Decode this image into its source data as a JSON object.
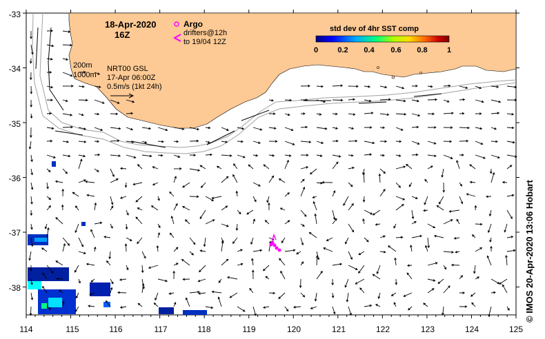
{
  "map": {
    "date": "18-Apr-2020",
    "time": "16Z",
    "argo_label": "Argo",
    "drifters_label_1": "drifters@12h",
    "drifters_label_2": "to 19/04 12Z",
    "depth_200": "200m",
    "depth_1000": "1000m",
    "product": "NRT00 GSL",
    "product_time": "17-Apr 06:00Z",
    "scale_label": "0.5m/s (1kt 24h)",
    "colorbar_title": "std dev of 4hr SST comp",
    "colorbar_ticks": [
      "0",
      "0.2",
      "0.4",
      "0.6",
      "0.8",
      "1"
    ],
    "credit": "© IMOS 20-Apr-2020 13:06 Hobart",
    "x_ticks": [
      "114",
      "115",
      "116",
      "117",
      "118",
      "119",
      "120",
      "121",
      "122",
      "123",
      "124",
      "125"
    ],
    "y_ticks": [
      "-33",
      "-34",
      "-35",
      "-36",
      "-37",
      "-38"
    ],
    "colors": {
      "land": "#fdc994",
      "argo": "#ff00ff",
      "isobath": "#a0a0a0",
      "colorbar": [
        "#00007f",
        "#0000ff",
        "#00aaff",
        "#00ff7f",
        "#aaff00",
        "#ffdd00",
        "#ff6600",
        "#cc0000",
        "#7f0000"
      ]
    }
  }
}
